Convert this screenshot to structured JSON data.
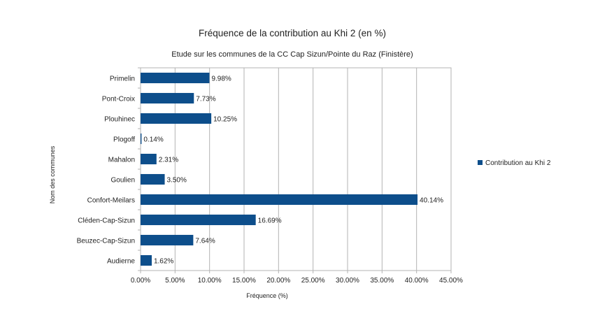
{
  "chart_data": {
    "type": "bar",
    "orientation": "horizontal",
    "title": "Fréquence de la contribution au Khi 2 (en %)",
    "subtitle": "Etude sur les communes de la CC Cap Sizun/Pointe du Raz (Finistère)",
    "xlabel": "Fréquence (%)",
    "ylabel": "Nom des communes",
    "categories": [
      "Primelin",
      "Pont-Croix",
      "Plouhinec",
      "Plogoff",
      "Mahalon",
      "Goulien",
      "Confort-Meilars",
      "Cléden-Cap-Sizun",
      "Beuzec-Cap-Sizun",
      "Audierne"
    ],
    "series": [
      {
        "name": "Contribution au Khi 2",
        "values": [
          9.98,
          7.73,
          10.25,
          0.14,
          2.31,
          3.5,
          40.14,
          16.69,
          7.64,
          1.62
        ],
        "data_labels": [
          "9.98%",
          "7.73%",
          "10.25%",
          "0.14%",
          "2.31%",
          "3.50%",
          "40.14%",
          "16.69%",
          "7.64%",
          "1.62%"
        ],
        "color": "#0d4e8b"
      }
    ],
    "xlim": [
      0,
      45
    ],
    "x_ticks": [
      0,
      5,
      10,
      15,
      20,
      25,
      30,
      35,
      40,
      45
    ],
    "x_tick_labels": [
      "0.00%",
      "5.00%",
      "10.00%",
      "15.00%",
      "20.00%",
      "25.00%",
      "30.00%",
      "35.00%",
      "40.00%",
      "45.00%"
    ],
    "grid": "vertical",
    "legend_position": "right"
  }
}
